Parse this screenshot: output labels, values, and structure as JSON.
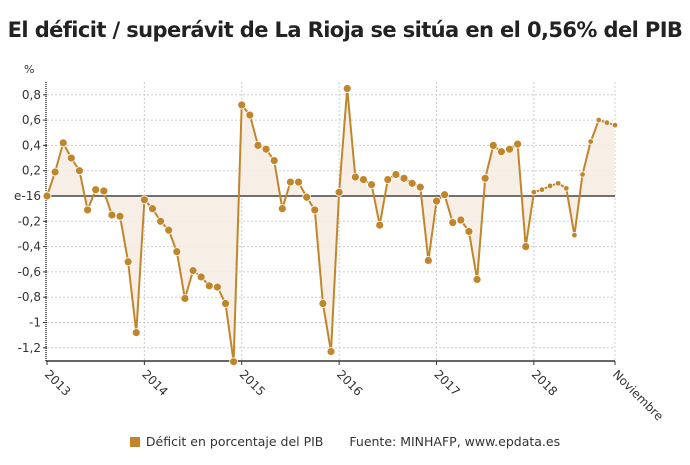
{
  "title": "El déficit / superávit de La Rioja se sitúa en el 0,56% del PIB",
  "y_unit": "%",
  "legend": {
    "series_label": "Déficit en porcentaje del PIB",
    "source": "Fuente: MINHAFP, www.epdata.es"
  },
  "colors": {
    "line": "#c1862c",
    "marker": "#c1862c",
    "fill": "#f6ece1",
    "zero_line": "#444444",
    "grid": "#cccccc"
  },
  "chart_data": {
    "type": "line",
    "title": "El déficit / superávit de La Rioja se sitúa en el 0,56% del PIB",
    "xlabel": "",
    "ylabel": "%",
    "ylim": [
      -1.3,
      0.9
    ],
    "grid": true,
    "legend_position": "bottom",
    "y_ticks": [
      {
        "value": 0.8,
        "label": "0,8"
      },
      {
        "value": 0.6,
        "label": "0,6"
      },
      {
        "value": 0.4,
        "label": "0,4"
      },
      {
        "value": 0.2,
        "label": "0,2"
      },
      {
        "value": 0,
        "label": "e-16"
      },
      {
        "value": -0.2,
        "label": "-0,2"
      },
      {
        "value": -0.4,
        "label": "-0,4"
      },
      {
        "value": -0.6,
        "label": "-0,6"
      },
      {
        "value": -0.8,
        "label": "-0,8"
      },
      {
        "value": -1,
        "label": "-1"
      },
      {
        "value": -1.2,
        "label": "-1,2"
      }
    ],
    "x_ticks": [
      {
        "index": 0,
        "label": "2013"
      },
      {
        "index": 12,
        "label": "2014"
      },
      {
        "index": 24,
        "label": "2015"
      },
      {
        "index": 36,
        "label": "2016"
      },
      {
        "index": 48,
        "label": "2017"
      },
      {
        "index": 60,
        "label": "2018"
      },
      {
        "index": 70,
        "label": "Noviembre"
      }
    ],
    "categories": [
      "Ene 2013",
      "Feb 2013",
      "Mar 2013",
      "Abr 2013",
      "May 2013",
      "Jun 2013",
      "Jul 2013",
      "Ago 2013",
      "Sep 2013",
      "Oct 2013",
      "Nov 2013",
      "Dic 2013",
      "Ene 2014",
      "Feb 2014",
      "Mar 2014",
      "Abr 2014",
      "May 2014",
      "Jun 2014",
      "Jul 2014",
      "Ago 2014",
      "Sep 2014",
      "Oct 2014",
      "Nov 2014",
      "Dic 2014",
      "Ene 2015",
      "Feb 2015",
      "Mar 2015",
      "Abr 2015",
      "May 2015",
      "Jun 2015",
      "Jul 2015",
      "Ago 2015",
      "Sep 2015",
      "Oct 2015",
      "Nov 2015",
      "Dic 2015",
      "Ene 2016",
      "Feb 2016",
      "Mar 2016",
      "Abr 2016",
      "May 2016",
      "Jun 2016",
      "Jul 2016",
      "Ago 2016",
      "Sep 2016",
      "Oct 2016",
      "Nov 2016",
      "Dic 2016",
      "Ene 2017",
      "Feb 2017",
      "Mar 2017",
      "Abr 2017",
      "May 2017",
      "Jun 2017",
      "Jul 2017",
      "Ago 2017",
      "Sep 2017",
      "Oct 2017",
      "Nov 2017",
      "Dic 2017",
      "Ene 2018",
      "Feb 2018",
      "Mar 2018",
      "Abr 2018",
      "May 2018",
      "Jun 2018",
      "Jul 2018",
      "Ago 2018",
      "Sep 2018",
      "Oct 2018",
      "Nov 2018"
    ],
    "series": [
      {
        "name": "Déficit en porcentaje del PIB",
        "values": [
          0.0,
          0.19,
          0.42,
          0.3,
          0.2,
          -0.11,
          0.05,
          0.04,
          -0.15,
          -0.16,
          -0.52,
          -1.08,
          -0.03,
          -0.1,
          -0.2,
          -0.27,
          -0.44,
          -0.81,
          -0.59,
          -0.64,
          -0.71,
          -0.72,
          -0.85,
          -1.31,
          0.72,
          0.64,
          0.4,
          0.37,
          0.28,
          -0.1,
          0.11,
          0.11,
          -0.01,
          -0.11,
          -0.85,
          -1.23,
          0.03,
          0.85,
          0.15,
          0.13,
          0.09,
          -0.23,
          0.13,
          0.17,
          0.14,
          0.1,
          0.07,
          -0.51,
          -0.04,
          0.01,
          -0.21,
          -0.19,
          -0.28,
          -0.66,
          0.14,
          0.4,
          0.35,
          0.37,
          0.41,
          -0.4,
          0.03,
          0.05,
          0.08,
          0.1,
          0.06,
          -0.31,
          0.17,
          0.43,
          0.6,
          0.58,
          0.56
        ]
      }
    ]
  }
}
